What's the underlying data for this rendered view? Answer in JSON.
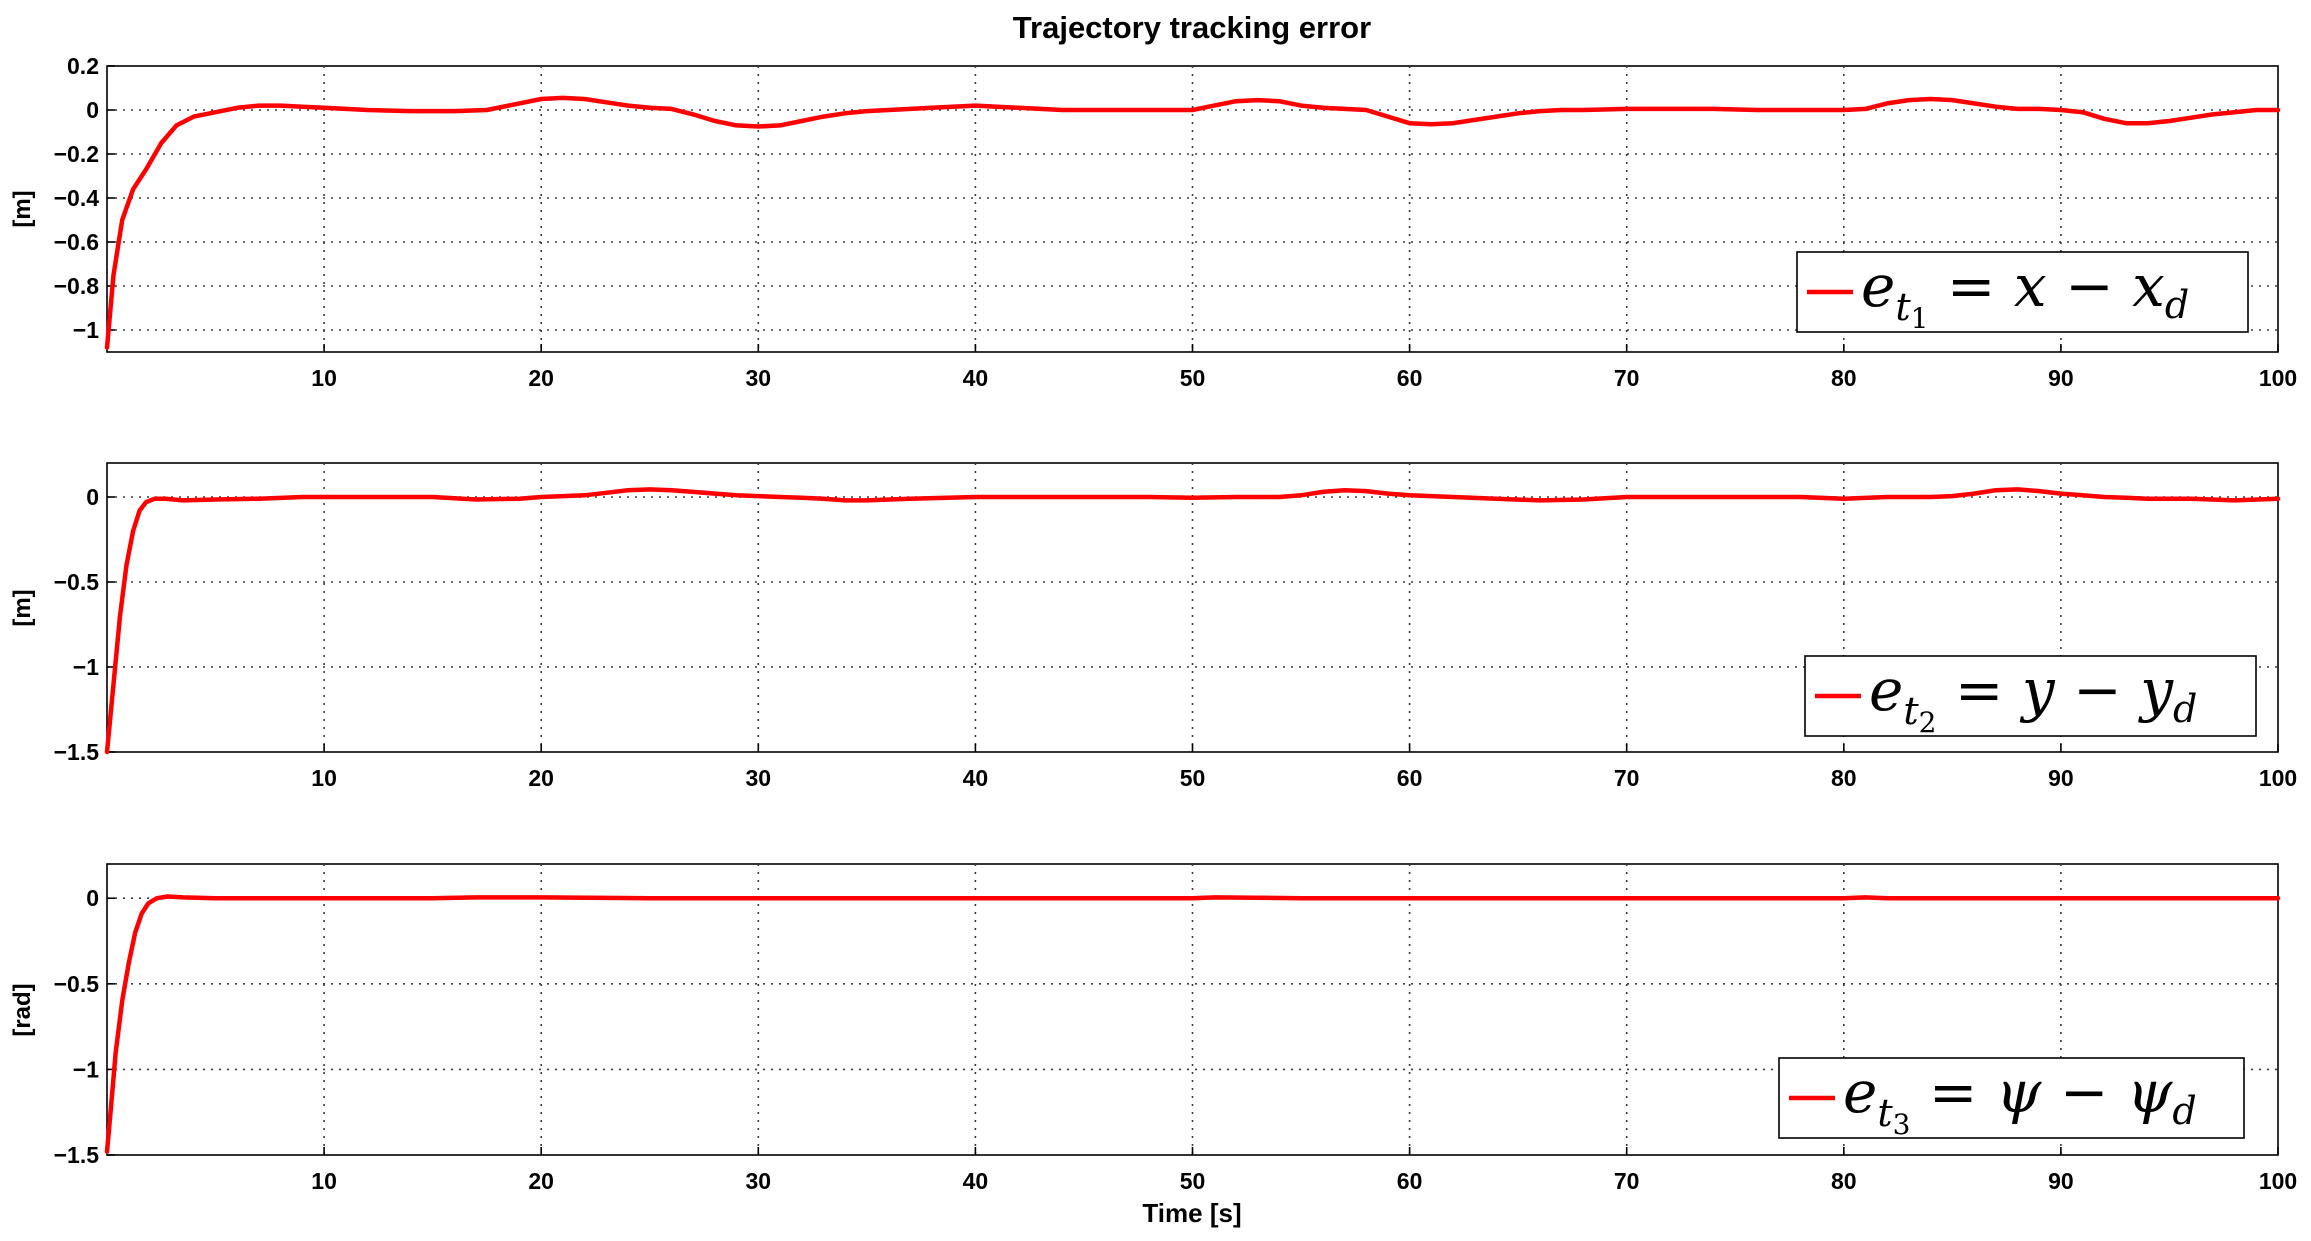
{
  "figure_title": "Trajectory tracking error",
  "chart_data": [
    {
      "type": "line",
      "title": "Trajectory tracking error",
      "xlabel": "",
      "ylabel": "[m]",
      "xlim": [
        0,
        100
      ],
      "ylim": [
        -1.1,
        0.2
      ],
      "xticks": [
        "10",
        "20",
        "30",
        "40",
        "50",
        "60",
        "70",
        "80",
        "90",
        "100"
      ],
      "yticks": [
        "0.2",
        "0",
        "−0.2",
        "−0.4",
        "−0.6",
        "−0.8",
        "−1"
      ],
      "ytick_values": [
        0.2,
        0,
        -0.2,
        -0.4,
        -0.6,
        -0.8,
        -1
      ],
      "grid": true,
      "legend_position": "bottom-right",
      "legend": {
        "base": "e",
        "sub": "t",
        "subsub": "1",
        "rhs_a": "x",
        "rhs_b": "x",
        "rhs_b_sub": "d",
        "eq": "=",
        "minus": "−"
      },
      "series": [
        {
          "color": "#ff0000",
          "x": [
            0,
            0.3,
            0.7,
            1.2,
            1.8,
            2.5,
            3.2,
            4,
            5,
            6,
            7,
            8,
            9,
            10,
            12,
            14,
            16,
            17.5,
            19,
            20,
            21,
            22,
            23,
            24,
            25,
            26,
            27,
            28,
            29,
            30,
            31,
            32,
            33,
            34,
            35,
            36,
            38,
            40,
            42,
            44,
            46,
            48,
            50,
            51,
            52,
            53,
            54,
            55,
            56,
            57,
            58,
            59,
            60,
            61,
            62,
            63,
            64,
            65,
            66,
            67,
            68,
            70,
            72,
            74,
            76,
            78,
            80,
            81,
            82,
            83,
            84,
            85,
            86,
            87,
            88,
            89,
            90,
            91,
            92,
            93,
            94,
            95,
            96,
            97,
            98,
            99,
            100
          ],
          "y": [
            -1.08,
            -0.75,
            -0.5,
            -0.36,
            -0.27,
            -0.15,
            -0.07,
            -0.03,
            -0.01,
            0.01,
            0.02,
            0.02,
            0.015,
            0.01,
            0.0,
            -0.005,
            -0.005,
            0.0,
            0.03,
            0.05,
            0.055,
            0.05,
            0.035,
            0.02,
            0.01,
            0.005,
            -0.02,
            -0.05,
            -0.07,
            -0.075,
            -0.07,
            -0.05,
            -0.03,
            -0.015,
            -0.005,
            0.0,
            0.01,
            0.02,
            0.01,
            0.0,
            0.0,
            0.0,
            0.0,
            0.02,
            0.04,
            0.045,
            0.04,
            0.02,
            0.01,
            0.005,
            0.0,
            -0.03,
            -0.06,
            -0.065,
            -0.06,
            -0.045,
            -0.03,
            -0.015,
            -0.005,
            0.0,
            0.0,
            0.005,
            0.005,
            0.005,
            0.0,
            0.0,
            0.0,
            0.005,
            0.03,
            0.045,
            0.05,
            0.045,
            0.03,
            0.015,
            0.005,
            0.005,
            0.0,
            -0.01,
            -0.04,
            -0.06,
            -0.06,
            -0.05,
            -0.035,
            -0.02,
            -0.01,
            0.0,
            0.0
          ]
        }
      ]
    },
    {
      "type": "line",
      "xlabel": "",
      "ylabel": "[m]",
      "xlim": [
        0,
        100
      ],
      "ylim": [
        -1.5,
        0.2
      ],
      "xticks": [
        "10",
        "20",
        "30",
        "40",
        "50",
        "60",
        "70",
        "80",
        "90",
        "100"
      ],
      "yticks": [
        "0",
        "−0.5",
        "−1",
        "−1.5"
      ],
      "ytick_values": [
        0,
        -0.5,
        -1,
        -1.5
      ],
      "grid": true,
      "legend_position": "bottom-right",
      "legend": {
        "base": "e",
        "sub": "t",
        "subsub": "2",
        "rhs_a": "y",
        "rhs_b": "y",
        "rhs_b_sub": "d",
        "eq": "=",
        "minus": "−"
      },
      "series": [
        {
          "color": "#ff0000",
          "x": [
            0,
            0.3,
            0.6,
            0.9,
            1.2,
            1.5,
            1.8,
            2.2,
            2.7,
            3.5,
            5,
            7,
            9,
            12,
            15,
            17,
            19,
            20,
            21,
            22,
            23,
            24,
            25,
            26,
            27,
            28,
            29,
            30,
            31,
            32,
            33,
            34,
            35,
            37,
            40,
            44,
            48,
            50,
            52,
            54,
            55,
            56,
            57,
            58,
            59,
            60,
            62,
            64,
            66,
            68,
            70,
            74,
            78,
            80,
            82,
            84,
            85,
            86,
            87,
            88,
            89,
            90,
            91,
            92,
            93,
            94,
            96,
            98,
            100
          ],
          "y": [
            -1.5,
            -1.1,
            -0.7,
            -0.4,
            -0.2,
            -0.08,
            -0.03,
            -0.01,
            -0.01,
            -0.02,
            -0.015,
            -0.01,
            0.0,
            0.0,
            0.0,
            -0.015,
            -0.01,
            0.0,
            0.005,
            0.01,
            0.025,
            0.04,
            0.045,
            0.04,
            0.03,
            0.02,
            0.01,
            0.005,
            0.0,
            -0.005,
            -0.01,
            -0.02,
            -0.02,
            -0.01,
            0.0,
            0.0,
            0.0,
            -0.005,
            0.0,
            0.0,
            0.01,
            0.03,
            0.04,
            0.035,
            0.02,
            0.01,
            0.0,
            -0.01,
            -0.02,
            -0.015,
            0.0,
            0.0,
            0.0,
            -0.01,
            0.0,
            0.0,
            0.005,
            0.02,
            0.04,
            0.045,
            0.035,
            0.02,
            0.01,
            0.0,
            -0.005,
            -0.01,
            -0.01,
            -0.02,
            -0.01
          ]
        }
      ]
    },
    {
      "type": "line",
      "xlabel": "Time [s]",
      "ylabel": "[rad]",
      "xlim": [
        0,
        100
      ],
      "ylim": [
        -1.5,
        0.2
      ],
      "xticks": [
        "10",
        "20",
        "30",
        "40",
        "50",
        "60",
        "70",
        "80",
        "90",
        "100"
      ],
      "yticks": [
        "0",
        "−0.5",
        "−1",
        "−1.5"
      ],
      "ytick_values": [
        0,
        -0.5,
        -1,
        -1.5
      ],
      "grid": true,
      "legend_position": "bottom-right",
      "legend": {
        "base": "e",
        "sub": "t",
        "subsub": "3",
        "rhs_a": "ψ",
        "rhs_b": "ψ",
        "rhs_b_sub": "d",
        "eq": "=",
        "minus": "−"
      },
      "series": [
        {
          "color": "#ff0000",
          "x": [
            0,
            0.2,
            0.4,
            0.7,
            1.0,
            1.3,
            1.6,
            1.9,
            2.3,
            2.8,
            3.5,
            5,
            10,
            15,
            17,
            20,
            25,
            30,
            40,
            50,
            51,
            55,
            60,
            70,
            80,
            81,
            82,
            90,
            100
          ],
          "y": [
            -1.48,
            -1.2,
            -0.9,
            -0.6,
            -0.38,
            -0.2,
            -0.09,
            -0.03,
            0.0,
            0.01,
            0.005,
            0.0,
            0.0,
            0.0,
            0.005,
            0.005,
            0.0,
            0.0,
            0.0,
            0.0,
            0.005,
            0.0,
            0.0,
            0.0,
            0.0,
            0.005,
            0.0,
            0.0,
            0.0
          ]
        }
      ]
    }
  ]
}
